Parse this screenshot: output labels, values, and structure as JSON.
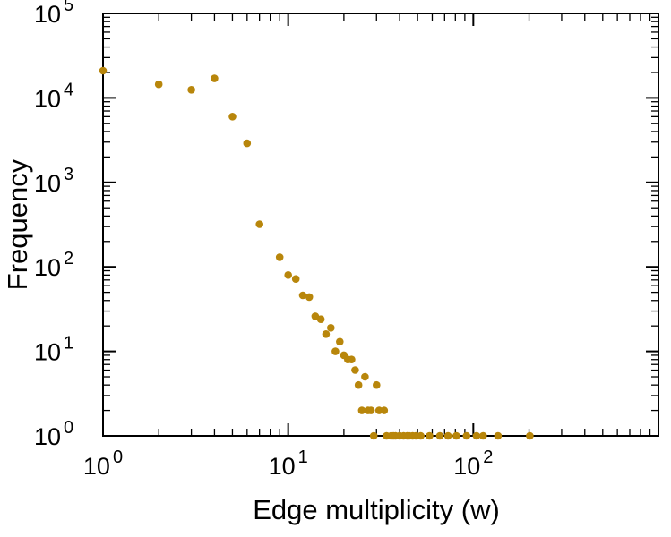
{
  "figure": {
    "background": "#ffffff",
    "border_color": "#000000",
    "text_color": "#000000"
  },
  "chart_data": {
    "type": "scatter",
    "title": "",
    "xlabel": "Edge multiplicity (w)",
    "ylabel": "Frequency",
    "x_scale": "log",
    "y_scale": "log",
    "xlim": [
      1,
      1000
    ],
    "ylim": [
      1,
      100000
    ],
    "x_labeled_exponents": [
      0,
      1,
      2
    ],
    "y_labeled_exponents": [
      0,
      1,
      2,
      3,
      4,
      5
    ],
    "grid": false,
    "legend": "none",
    "marker": {
      "shape": "circle",
      "color": "#b8860b",
      "size": 4.3
    },
    "points": [
      [
        1,
        21000
      ],
      [
        2,
        14500
      ],
      [
        3,
        12500
      ],
      [
        4,
        17000
      ],
      [
        5,
        6000
      ],
      [
        6,
        2900
      ],
      [
        7,
        320
      ],
      [
        9,
        130
      ],
      [
        10,
        80
      ],
      [
        11,
        72
      ],
      [
        12,
        46
      ],
      [
        13,
        44
      ],
      [
        14,
        26
      ],
      [
        15,
        24
      ],
      [
        16,
        16
      ],
      [
        17,
        19
      ],
      [
        18,
        10
      ],
      [
        19,
        13
      ],
      [
        20,
        9
      ],
      [
        21,
        8
      ],
      [
        22,
        8
      ],
      [
        23,
        6
      ],
      [
        24,
        4
      ],
      [
        25,
        2
      ],
      [
        26,
        5
      ],
      [
        27,
        2
      ],
      [
        28,
        2
      ],
      [
        29,
        1
      ],
      [
        30,
        4
      ],
      [
        31,
        2
      ],
      [
        33,
        2
      ],
      [
        34,
        1
      ],
      [
        36,
        1
      ],
      [
        37,
        1
      ],
      [
        38,
        1
      ],
      [
        40,
        1
      ],
      [
        42,
        1
      ],
      [
        44,
        1
      ],
      [
        45,
        1
      ],
      [
        47,
        1
      ],
      [
        49,
        1
      ],
      [
        52,
        1
      ],
      [
        58,
        1
      ],
      [
        66,
        1
      ],
      [
        73,
        1
      ],
      [
        81,
        1
      ],
      [
        92,
        1
      ],
      [
        104,
        1
      ],
      [
        113,
        1
      ],
      [
        136,
        1
      ],
      [
        202,
        1
      ]
    ]
  }
}
